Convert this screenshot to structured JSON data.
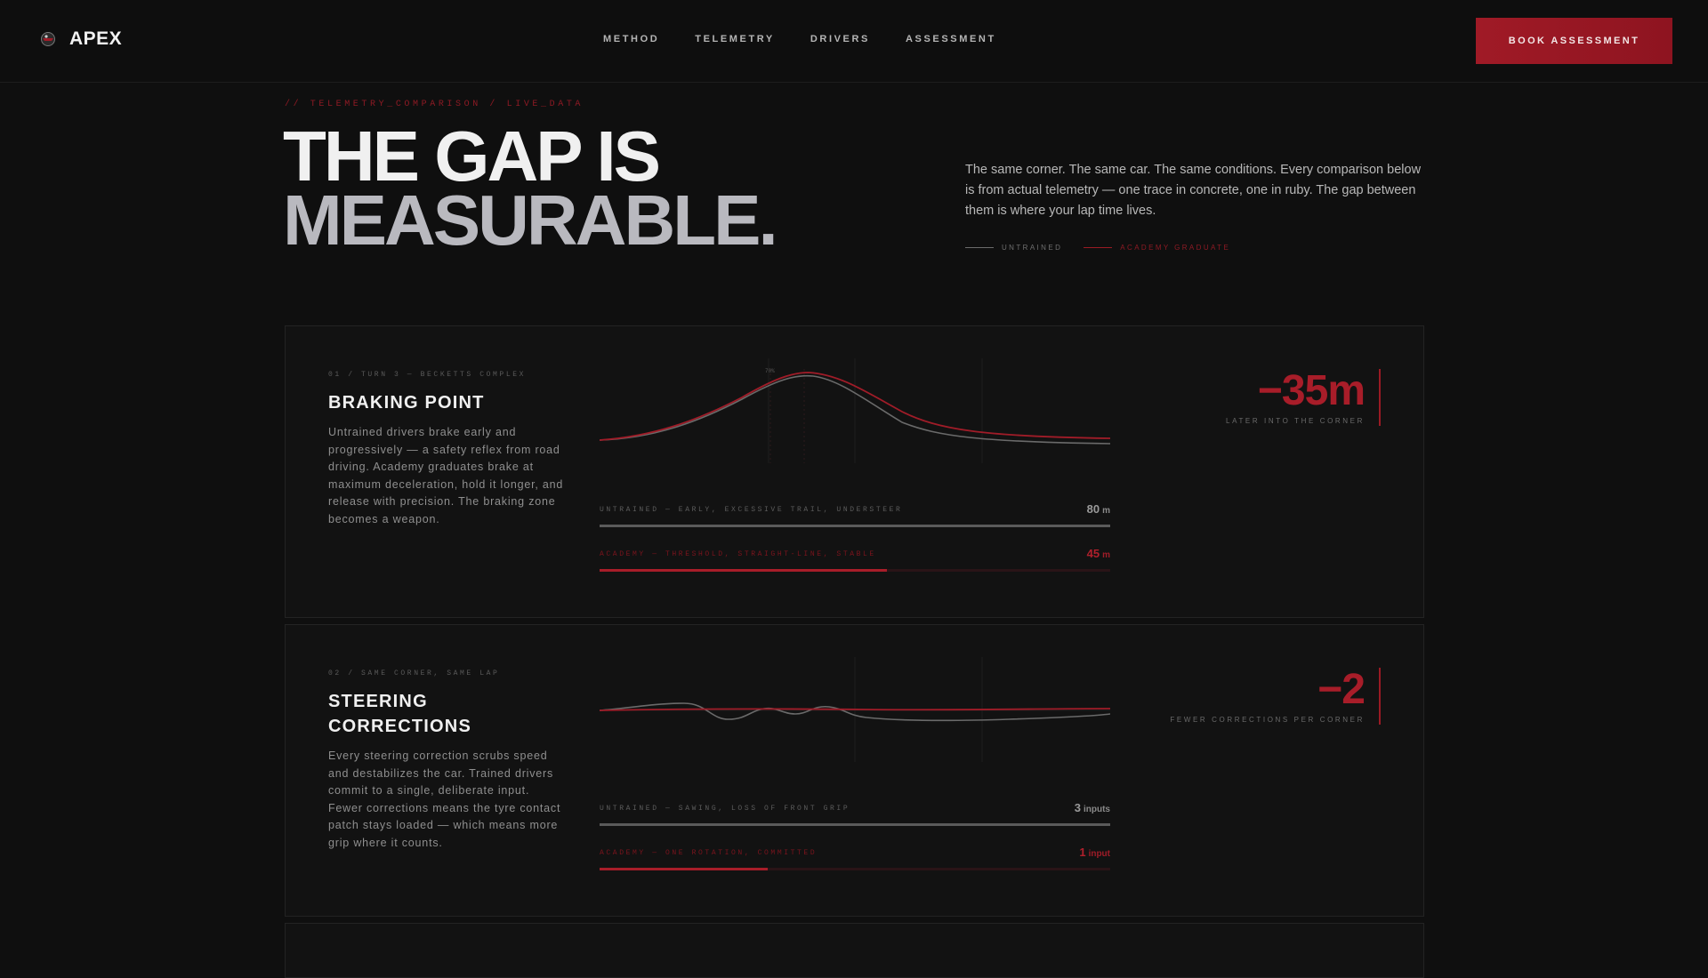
{
  "header": {
    "brand": "APEX",
    "nav": [
      "METHOD",
      "TELEMETRY",
      "DRIVERS",
      "ASSESSMENT"
    ],
    "cta_label": "BOOK ASSESSMENT"
  },
  "hero": {
    "eyebrow": "// TELEMETRY_COMPARISON / LIVE_DATA",
    "headline_line1": "THE GAP IS",
    "headline_line2": "MEASURABLE.",
    "intro": "The same corner. The same car. The same conditions. Every comparison below is from actual telemetry — one trace in concrete, one in ruby. The gap between them is where your lap time lives.",
    "legend": [
      {
        "label": "UNTRAINED",
        "color": "#6b6b6b"
      },
      {
        "label": "ACADEMY GRADUATE",
        "color": "#9a1a24"
      }
    ]
  },
  "cards": [
    {
      "meta": "01 / TURN 3 — BECKETTS COMPLEX",
      "title": "BRAKING POINT",
      "body": "Untrained drivers brake early and progressively — a safety reflex from road driving. Academy graduates brake at maximum deceleration, hold it longer, and release with precision. The braking zone becomes a weapon.",
      "chart_label": "70%",
      "untrained": {
        "label": "UNTRAINED — EARLY, EXCESSIVE TRAIL, UNDERSTEER",
        "value": "80",
        "unit": "m",
        "fill": 1.0
      },
      "academy": {
        "label": "ACADEMY — THRESHOLD, STRAIGHT-LINE, STABLE",
        "value": "45",
        "unit": "m",
        "fill": 0.5625
      },
      "stat": {
        "value": "−35m",
        "caption": "LATER INTO THE CORNER"
      }
    },
    {
      "meta": "02 / SAME CORNER, SAME LAP",
      "title": "STEERING CORRECTIONS",
      "body": "Every steering correction scrubs speed and destabilizes the car. Trained drivers commit to a single, deliberate input. Fewer corrections means the tyre contact patch stays loaded — which means more grip where it counts.",
      "untrained": {
        "label": "UNTRAINED — SAWING, LOSS OF FRONT GRIP",
        "value": "3",
        "unit": "inputs",
        "fill": 1.0
      },
      "academy": {
        "label": "ACADEMY — ONE ROTATION, COMMITTED",
        "value": "1",
        "unit": "input",
        "fill": 0.33
      },
      "stat": {
        "value": "−2",
        "caption": "FEWER CORRECTIONS PER CORNER"
      }
    }
  ],
  "colors": {
    "accent": "#a81d29",
    "background": "#0f0f0f",
    "concrete": "#6b6b6b"
  }
}
